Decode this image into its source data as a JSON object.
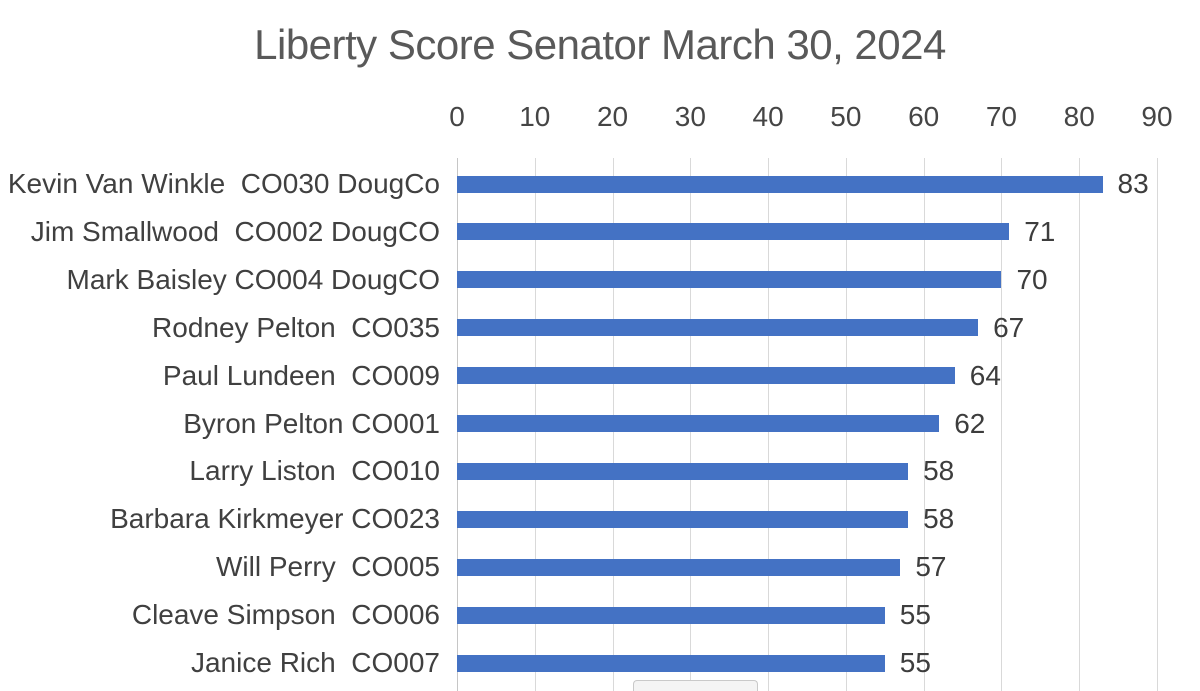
{
  "title": "Liberty Score Senator March 30, 2024",
  "colors": {
    "bar": "#4472C4",
    "gridline": "#D9D9D9",
    "axis_line": "#C6C6C6",
    "title_text": "#595959",
    "label_text": "#404040"
  },
  "chart_data": {
    "type": "bar",
    "orientation": "horizontal",
    "title": "Liberty Score Senator March 30, 2024",
    "categories": [
      "Kevin Van Winkle  CO030 DougCo",
      "Jim Smallwood  CO002 DougCO",
      "Mark Baisley CO004 DougCO",
      "Rodney Pelton  CO035",
      "Paul Lundeen  CO009",
      "Byron Pelton CO001",
      "Larry Liston  CO010",
      "Barbara Kirkmeyer CO023",
      "Will Perry  CO005",
      "Cleave Simpson  CO006",
      "Janice Rich  CO007"
    ],
    "values": [
      83,
      71,
      70,
      67,
      64,
      62,
      58,
      58,
      57,
      55,
      55
    ],
    "x_ticks": [
      0,
      10,
      20,
      30,
      40,
      50,
      60,
      70,
      80,
      90
    ],
    "xlim": [
      0,
      90
    ],
    "xlabel": "",
    "ylabel": "",
    "grid": true,
    "axis_position": "top",
    "legend": false,
    "value_labels_shown": true,
    "note": "chart is cut off at the bottom edge; a partial tooltip/box is visible bottom-center"
  }
}
